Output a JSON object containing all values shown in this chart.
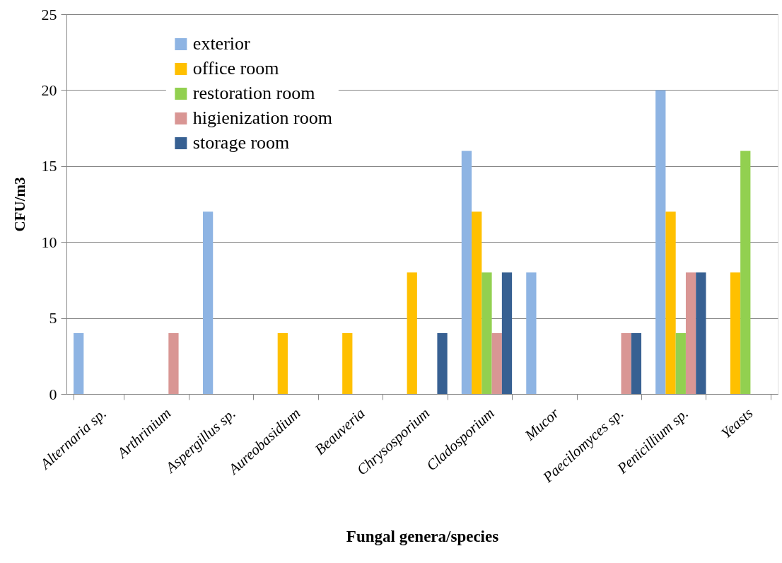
{
  "chart_data": {
    "type": "bar",
    "xlabel": "Fungal genera/species",
    "ylabel": "CFU/m3",
    "categories": [
      "Alternaria sp.",
      "Arthrinium",
      "Aspergillus sp.",
      "Aureobasidium",
      "Beauveria",
      "Chrysosporium",
      "Cladosporium",
      "Mucor",
      "Paecilomyces sp.",
      "Penicillium sp.",
      "Yeasts"
    ],
    "series": [
      {
        "name": "exterior",
        "color": "#8eb4e3",
        "values": [
          4,
          null,
          12,
          null,
          null,
          null,
          16,
          8,
          null,
          20,
          null
        ]
      },
      {
        "name": "office room",
        "color": "#ffc000",
        "values": [
          null,
          null,
          null,
          4,
          4,
          8,
          12,
          null,
          null,
          12,
          8
        ]
      },
      {
        "name": "restoration room",
        "color": "#92d050",
        "values": [
          null,
          null,
          null,
          null,
          null,
          null,
          8,
          null,
          null,
          4,
          16
        ]
      },
      {
        "name": "higienization room",
        "color": "#d99694",
        "values": [
          null,
          4,
          null,
          null,
          null,
          null,
          4,
          null,
          4,
          8,
          null
        ]
      },
      {
        "name": "storage room",
        "color": "#376092",
        "values": [
          null,
          null,
          null,
          null,
          null,
          4,
          8,
          null,
          4,
          8,
          null
        ]
      }
    ],
    "ylim": [
      0,
      25
    ],
    "yticks": [
      0,
      5,
      10,
      15,
      20,
      25
    ],
    "grid": "y",
    "legend": "top left"
  }
}
